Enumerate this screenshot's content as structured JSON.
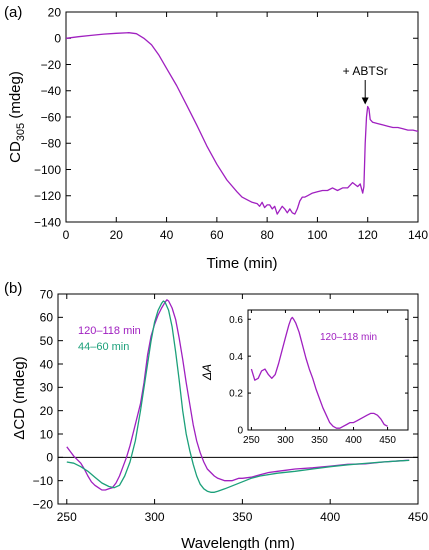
{
  "panels": {
    "a": "(a)",
    "b": "(b)"
  },
  "chart_data": [
    {
      "type": "line",
      "panel": "(a)",
      "xlabel": "Time (min)",
      "ylabel_main": "CD",
      "ylabel_sub": "305",
      "ylabel_unit": " (mdeg)",
      "xlim": [
        0,
        140
      ],
      "ylim": [
        -140,
        20
      ],
      "xticks": [
        0,
        20,
        40,
        60,
        80,
        100,
        120,
        140
      ],
      "yticks": [
        20,
        0,
        -20,
        -40,
        -60,
        -80,
        -100,
        -120,
        -140
      ],
      "annotations": [
        {
          "text": "+ ABTSr",
          "x": 119,
          "y": -52
        }
      ],
      "series": [
        {
          "color": "#a020c0",
          "x": [
            0,
            5,
            10,
            15,
            20,
            25,
            28,
            31,
            34,
            37,
            40,
            44,
            48,
            52,
            56,
            60,
            64,
            68,
            70,
            72,
            74,
            76,
            77,
            78,
            79,
            80,
            81,
            82,
            83,
            84,
            85,
            86,
            87,
            88,
            89,
            90,
            91,
            92,
            93,
            94,
            95,
            96,
            98,
            100,
            102,
            104,
            106,
            108,
            110,
            112,
            114,
            116,
            117,
            118,
            118.5,
            119,
            119.5,
            120,
            120.5,
            121,
            122,
            124,
            126,
            128,
            130,
            132,
            134,
            136,
            138,
            140
          ],
          "y": [
            0,
            1.2,
            2.2,
            3.2,
            3.8,
            4.2,
            3.5,
            0,
            -5,
            -13,
            -23,
            -36,
            -51,
            -66,
            -82,
            -96,
            -108,
            -117,
            -121,
            -123,
            -125,
            -126,
            -128,
            -125,
            -129,
            -127,
            -127,
            -130,
            -128,
            -134,
            -131,
            -128,
            -130,
            -133,
            -130,
            -133,
            -134,
            -130,
            -124,
            -121,
            -121,
            -120,
            -118,
            -117,
            -116,
            -116,
            -114,
            -116,
            -114,
            -114,
            -110,
            -113,
            -111,
            -118,
            -113,
            -80,
            -60,
            -52,
            -54,
            -62,
            -64,
            -65,
            -66,
            -67,
            -68,
            -68,
            -69,
            -70,
            -70,
            -71
          ]
        }
      ]
    },
    {
      "type": "line",
      "panel": "(b)",
      "xlabel": "Wavelength (nm)",
      "ylabel": "ΔCD (mdeg)",
      "xlim": [
        245,
        450
      ],
      "ylim": [
        -20,
        70
      ],
      "xticks": [
        250,
        300,
        350,
        400,
        450
      ],
      "yticks": [
        70,
        60,
        50,
        40,
        30,
        20,
        10,
        0,
        -10,
        -20
      ],
      "legend_position": "top-left",
      "series": [
        {
          "name": "120–118 min",
          "color": "#a020c0",
          "x": [
            250,
            252,
            254,
            256,
            258,
            260,
            262,
            264,
            266,
            268,
            270,
            272,
            274,
            276,
            278,
            280,
            282,
            284,
            286,
            288,
            290,
            292,
            294,
            296,
            298,
            300,
            302,
            304,
            306,
            307,
            308,
            310,
            312,
            314,
            316,
            318,
            320,
            322,
            324,
            326,
            328,
            330,
            332,
            334,
            336,
            338,
            340,
            342,
            344,
            346,
            348,
            350,
            355,
            360,
            365,
            370,
            375,
            380,
            390,
            400,
            410,
            420,
            430,
            440,
            445
          ],
          "y": [
            4.5,
            2.5,
            0.5,
            -1,
            -2.5,
            -5,
            -8,
            -10.5,
            -12,
            -13,
            -14,
            -14,
            -13.5,
            -13,
            -11,
            -8,
            -4,
            0,
            5,
            11,
            17,
            23,
            32,
            44,
            52,
            57,
            61,
            64,
            66.5,
            67.5,
            67,
            64,
            59,
            51,
            42,
            32,
            23,
            14,
            7,
            2,
            -2,
            -5,
            -6.5,
            -8,
            -9,
            -9.5,
            -10,
            -10,
            -10,
            -9.5,
            -9,
            -9,
            -8.5,
            -7.5,
            -6.5,
            -6,
            -5.5,
            -5,
            -4.5,
            -3.8,
            -3,
            -2.8,
            -2,
            -1.5,
            -1.2
          ]
        },
        {
          "name": "44–60 min",
          "color": "#1ca07a",
          "x": [
            250,
            254,
            258,
            262,
            266,
            270,
            274,
            277,
            280,
            283,
            286,
            289,
            292,
            295,
            298,
            300,
            302,
            304,
            305,
            306,
            308,
            310,
            312,
            314,
            316,
            318,
            320,
            322,
            324,
            326,
            328,
            330,
            332,
            334,
            336,
            338,
            340,
            345,
            350,
            355,
            360,
            370,
            380,
            390,
            400,
            410,
            420,
            430,
            440,
            445
          ],
          "y": [
            -2,
            -2.5,
            -4,
            -6,
            -8.5,
            -11,
            -12.5,
            -13,
            -12,
            -8,
            -2,
            7,
            20,
            35,
            50,
            58,
            63,
            66,
            67,
            66.5,
            63,
            56,
            45,
            33,
            20,
            10,
            3,
            -3,
            -8,
            -11.5,
            -13.5,
            -14.5,
            -15,
            -15,
            -14.5,
            -14,
            -13.5,
            -12,
            -10.5,
            -9,
            -8,
            -6.8,
            -6,
            -5,
            -4,
            -3.2,
            -2.6,
            -2,
            -1.5,
            -1.3
          ]
        }
      ]
    },
    {
      "type": "line",
      "panel": "inset",
      "ylabel": "ΔA",
      "xlim": [
        245,
        480
      ],
      "ylim": [
        0,
        0.65
      ],
      "xticks": [
        250,
        300,
        350,
        400,
        450
      ],
      "yticks": [
        0.6,
        0.4,
        0.2,
        0
      ],
      "series": [
        {
          "name": "120–118 min",
          "color": "#a020c0",
          "x": [
            250,
            255,
            260,
            265,
            270,
            275,
            280,
            285,
            290,
            295,
            300,
            305,
            308,
            310,
            312,
            315,
            320,
            325,
            330,
            335,
            340,
            345,
            350,
            355,
            360,
            365,
            370,
            375,
            380,
            385,
            390,
            395,
            400,
            405,
            410,
            415,
            420,
            425,
            430,
            435,
            440,
            445,
            450
          ],
          "y": [
            0.33,
            0.27,
            0.28,
            0.32,
            0.33,
            0.3,
            0.28,
            0.3,
            0.36,
            0.43,
            0.5,
            0.57,
            0.6,
            0.61,
            0.6,
            0.58,
            0.53,
            0.46,
            0.39,
            0.33,
            0.28,
            0.22,
            0.17,
            0.12,
            0.08,
            0.04,
            0.02,
            0.01,
            0.01,
            0.02,
            0.03,
            0.04,
            0.04,
            0.05,
            0.06,
            0.07,
            0.08,
            0.09,
            0.09,
            0.08,
            0.06,
            0.03,
            0.02
          ]
        }
      ]
    }
  ]
}
